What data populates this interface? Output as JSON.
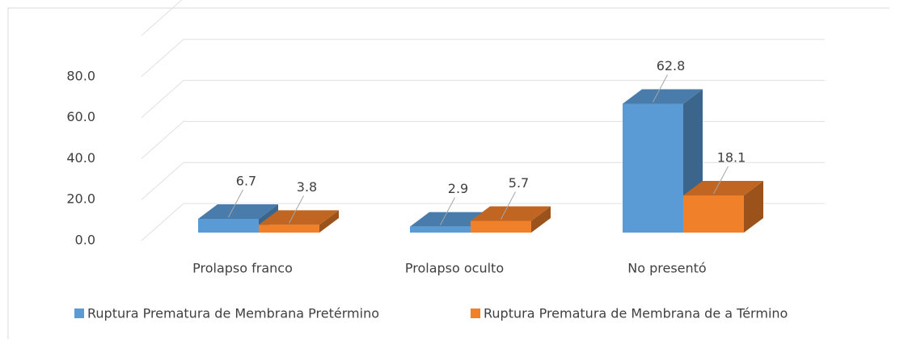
{
  "chart_data": {
    "type": "bar3d",
    "categories": [
      "Prolapso franco",
      "Prolapso oculto",
      "No presentó"
    ],
    "series": [
      {
        "name": "Ruptura Prematura de Membrana Pretérmino",
        "color": "#5b9bd5",
        "values": [
          6.7,
          2.9,
          62.8
        ]
      },
      {
        "name": "Ruptura Prematura de Membrana de a Término",
        "color": "#f0802a",
        "values": [
          3.8,
          5.7,
          18.1
        ]
      }
    ],
    "ylim": [
      0,
      100
    ],
    "yticks": [
      {
        "value": 0,
        "label": "0.0"
      },
      {
        "value": 20,
        "label": "20.0"
      },
      {
        "value": 40,
        "label": "40.0"
      },
      {
        "value": 60,
        "label": "60.0"
      },
      {
        "value": 80,
        "label": "80.0"
      }
    ],
    "grid": true,
    "legend": "bottom"
  }
}
